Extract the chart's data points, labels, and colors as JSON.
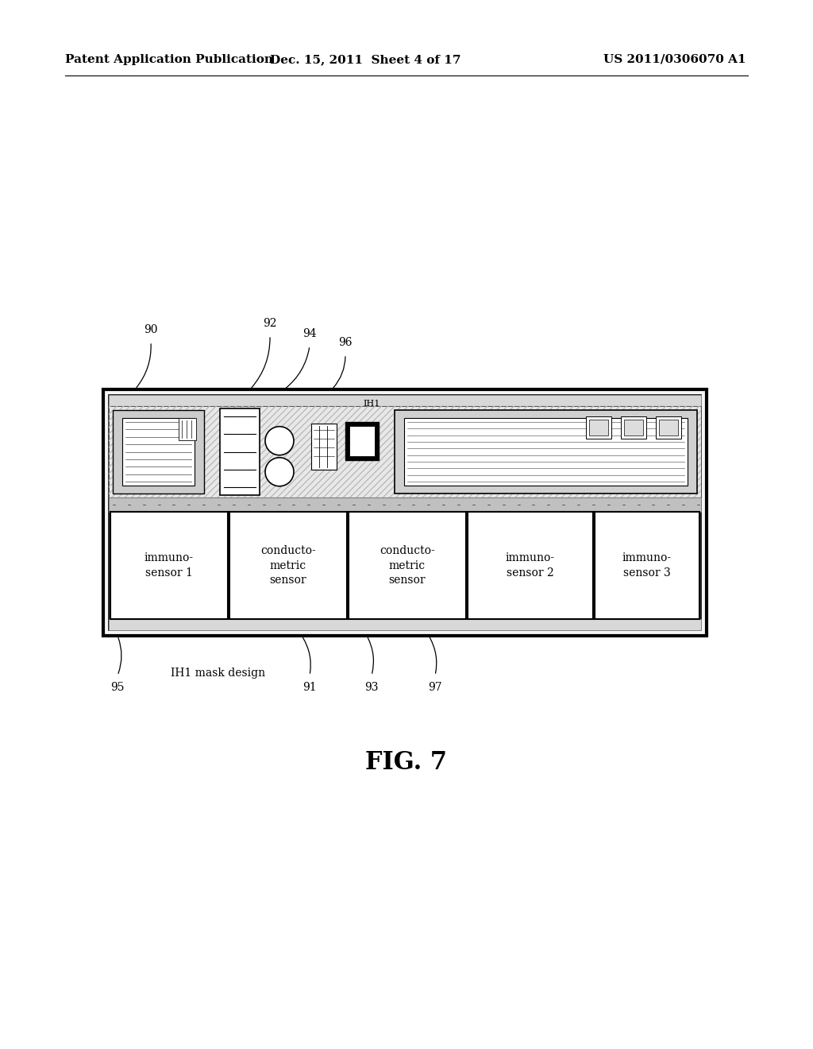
{
  "bg_color": "#ffffff",
  "header_left": "Patent Application Publication",
  "header_center": "Dec. 15, 2011  Sheet 4 of 17",
  "header_right": "US 2011/0306070 A1",
  "fig_label": "FIG. 7",
  "sensor_labels": [
    "immuno-\nsensor 1",
    "conducto-\nmetric\nsensor",
    "conducto-\nmetric\nsensor",
    "immuno-\nsensor 2",
    "immuno-\nsensor 3"
  ]
}
